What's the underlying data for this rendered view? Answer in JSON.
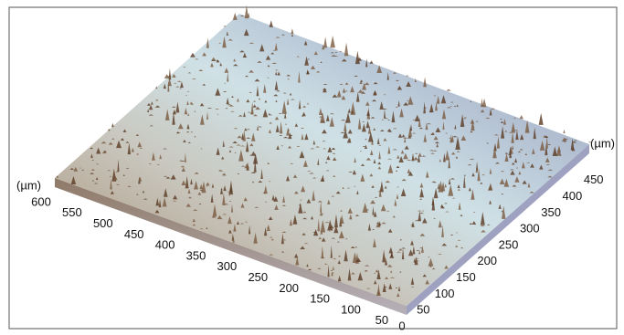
{
  "left_axis": {
    "unit": "(µm)",
    "ticks": [
      "600",
      "550",
      "500",
      "450",
      "400",
      "350",
      "300",
      "250",
      "200",
      "150",
      "100",
      "50"
    ]
  },
  "right_axis": {
    "unit": "(µm)",
    "ticks": [
      "0",
      "50",
      "100",
      "150",
      "200",
      "250",
      "300",
      "350",
      "400",
      "450"
    ]
  }
}
